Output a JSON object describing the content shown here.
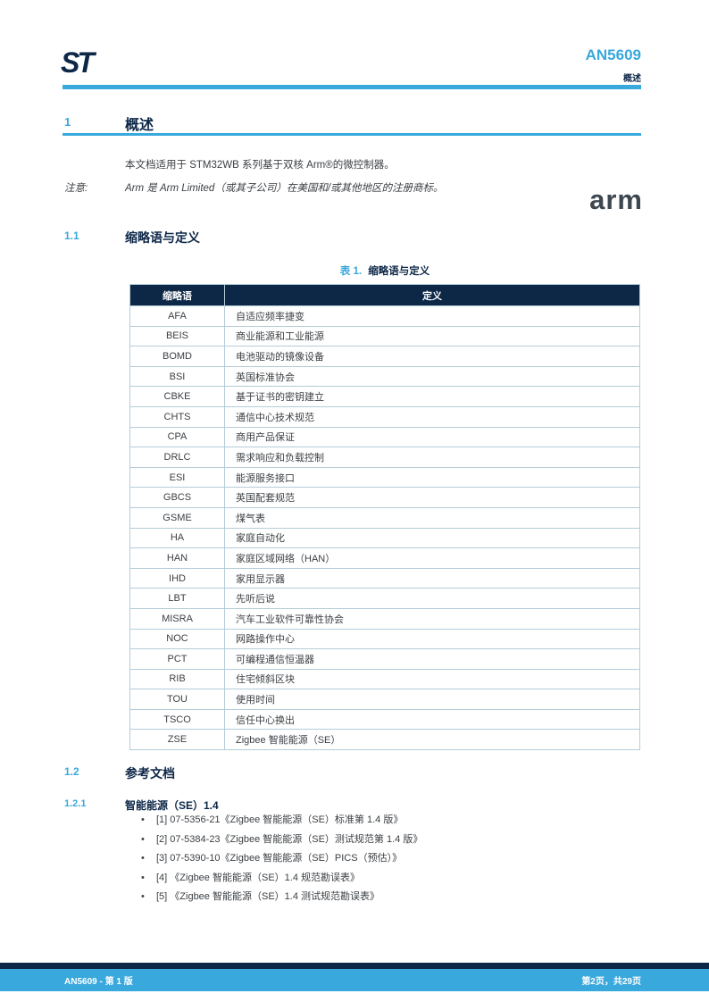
{
  "header": {
    "doc_number": "AN5609",
    "breadcrumb": "概述"
  },
  "logos": {
    "st": "ST",
    "arm": "arm"
  },
  "sections": {
    "s1": {
      "number": "1",
      "title": "概述"
    },
    "s11": {
      "number": "1.1",
      "title": "缩略语与定义"
    },
    "s12": {
      "number": "1.2",
      "title": "参考文档"
    },
    "s121": {
      "number": "1.2.1",
      "title": "智能能源（SE）1.4"
    }
  },
  "body": {
    "paragraph": "本文档适用于 STM32WB 系列基于双核 Arm®的微控制器。",
    "note_label": "注意:",
    "note_text": "Arm 是 Arm Limited（或其子公司）在美国和/或其他地区的注册商标。"
  },
  "table": {
    "caption_prefix": "表 1.",
    "caption_title": "缩略语与定义",
    "headers": [
      "缩略语",
      "定义"
    ],
    "rows": [
      [
        "AFA",
        "自适应频率捷变"
      ],
      [
        "BEIS",
        "商业能源和工业能源"
      ],
      [
        "BOMD",
        "电池驱动的镜像设备"
      ],
      [
        "BSI",
        "英国标准协会"
      ],
      [
        "CBKE",
        "基于证书的密钥建立"
      ],
      [
        "CHTS",
        "通信中心技术规范"
      ],
      [
        "CPA",
        "商用产品保证"
      ],
      [
        "DRLC",
        "需求响应和负载控制"
      ],
      [
        "ESI",
        "能源服务接口"
      ],
      [
        "GBCS",
        "英国配套规范"
      ],
      [
        "GSME",
        "煤气表"
      ],
      [
        "HA",
        "家庭自动化"
      ],
      [
        "HAN",
        "家庭区域网络（HAN）"
      ],
      [
        "IHD",
        "家用显示器"
      ],
      [
        "LBT",
        "先听后说"
      ],
      [
        "MISRA",
        "汽车工业软件可靠性协会"
      ],
      [
        "NOC",
        "网路操作中心"
      ],
      [
        "PCT",
        "可编程通信恒温器"
      ],
      [
        "RIB",
        "住宅倾斜区块"
      ],
      [
        "TOU",
        "使用时间"
      ],
      [
        "TSCO",
        "信任中心换出"
      ],
      [
        "ZSE",
        "Zigbee 智能能源（SE）"
      ]
    ]
  },
  "references": {
    "items": [
      "[1] 07-5356-21《Zigbee 智能能源（SE）标准第 1.4 版》",
      "[2] 07-5384-23《Zigbee 智能能源（SE）测试规范第 1.4 版》",
      "[3] 07-5390-10《Zigbee 智能能源（SE）PICS（预估）》",
      "[4] 《Zigbee 智能能源（SE）1.4 规范勘误表》",
      "[5] 《Zigbee 智能能源（SE）1.4 测试规范勘误表》"
    ]
  },
  "footer": {
    "left": "AN5609 - 第 1 版",
    "right": "第2页，共29页"
  },
  "colors": {
    "navy": "#0d2747",
    "blue": "#39a8dc",
    "text": "#3c4044",
    "arm_gray": "#3e4650"
  }
}
